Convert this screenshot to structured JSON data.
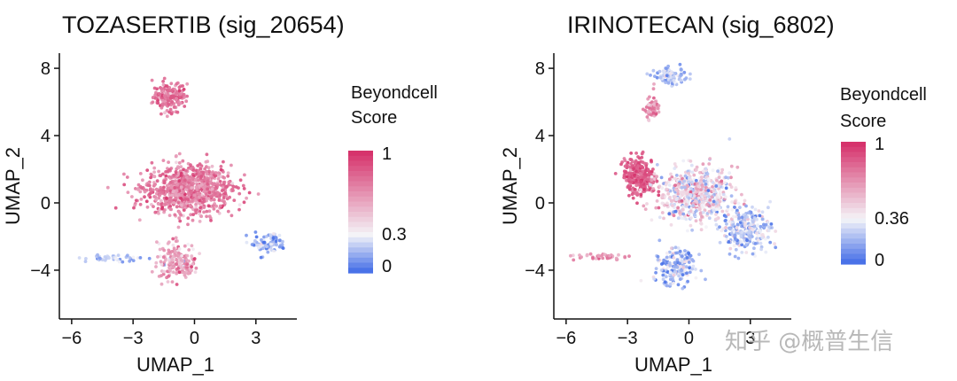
{
  "chart_data": [
    {
      "type": "scatter",
      "title": "TOZASERTIB (sig_20654)",
      "xlabel": "UMAP_1",
      "ylabel": "UMAP_2",
      "xlim": [
        -6.6,
        5.0
      ],
      "ylim": [
        -6.9,
        8.9
      ],
      "xticks": [
        -6,
        -3,
        0,
        3
      ],
      "yticks": [
        -4,
        0,
        4,
        8
      ],
      "grid": false,
      "legend": {
        "title_lines": [
          "Beyondcell",
          "Score"
        ],
        "labels": [
          "1",
          "0.3",
          "0"
        ],
        "threshold": 0.3,
        "placement": "right"
      },
      "colors": {
        "high": "#d6336c",
        "mid": "#f4f4f8",
        "low": "#4a72e8"
      },
      "clusters": [
        {
          "cx": -1.2,
          "cy": 6.3,
          "sx": 0.75,
          "sy": 0.8,
          "score": 0.78,
          "sd": 0.1,
          "n": 170
        },
        {
          "cx": -0.3,
          "cy": 0.8,
          "sx": 1.9,
          "sy": 1.3,
          "score": 0.72,
          "sd": 0.12,
          "n": 900
        },
        {
          "cx": -0.8,
          "cy": -3.5,
          "sx": 0.9,
          "sy": 1.0,
          "score": 0.62,
          "sd": 0.15,
          "n": 180
        },
        {
          "cx": 3.6,
          "cy": -2.4,
          "sx": 0.8,
          "sy": 0.55,
          "score": 0.15,
          "sd": 0.1,
          "n": 90
        },
        {
          "cx": -4.0,
          "cy": -3.3,
          "sx": 1.2,
          "sy": 0.2,
          "score": 0.2,
          "sd": 0.12,
          "n": 40
        }
      ]
    },
    {
      "type": "scatter",
      "title": "IRINOTECAN (sig_6802)",
      "xlabel": "UMAP_1",
      "ylabel": "UMAP_2",
      "xlim": [
        -6.6,
        5.0
      ],
      "ylim": [
        -6.9,
        8.9
      ],
      "xticks": [
        -6,
        -3,
        0,
        3
      ],
      "yticks": [
        -4,
        0,
        4,
        8
      ],
      "grid": false,
      "legend": {
        "title_lines": [
          "Beyondcell",
          "Score"
        ],
        "labels": [
          "1",
          "0.36",
          "0"
        ],
        "threshold": 0.36,
        "placement": "right"
      },
      "colors": {
        "high": "#d6336c",
        "mid": "#f4f4f8",
        "low": "#4a72e8"
      },
      "clusters": [
        {
          "cx": -0.9,
          "cy": 7.5,
          "sx": 0.7,
          "sy": 0.4,
          "score": 0.2,
          "sd": 0.12,
          "n": 90
        },
        {
          "cx": -1.8,
          "cy": 5.6,
          "sx": 0.35,
          "sy": 0.6,
          "score": 0.7,
          "sd": 0.12,
          "n": 60
        },
        {
          "cx": -2.4,
          "cy": 1.6,
          "sx": 0.7,
          "sy": 1.0,
          "score": 0.88,
          "sd": 0.08,
          "n": 260
        },
        {
          "cx": 0.3,
          "cy": 0.5,
          "sx": 1.6,
          "sy": 1.4,
          "score": 0.42,
          "sd": 0.18,
          "n": 600
        },
        {
          "cx": 2.8,
          "cy": -1.5,
          "sx": 1.1,
          "sy": 1.2,
          "score": 0.25,
          "sd": 0.15,
          "n": 260
        },
        {
          "cx": -0.7,
          "cy": -3.8,
          "sx": 0.9,
          "sy": 1.0,
          "score": 0.2,
          "sd": 0.14,
          "n": 200
        },
        {
          "cx": -4.2,
          "cy": -3.2,
          "sx": 1.1,
          "sy": 0.2,
          "score": 0.7,
          "sd": 0.12,
          "n": 40
        }
      ]
    }
  ],
  "watermark": "知乎 @概普生信"
}
